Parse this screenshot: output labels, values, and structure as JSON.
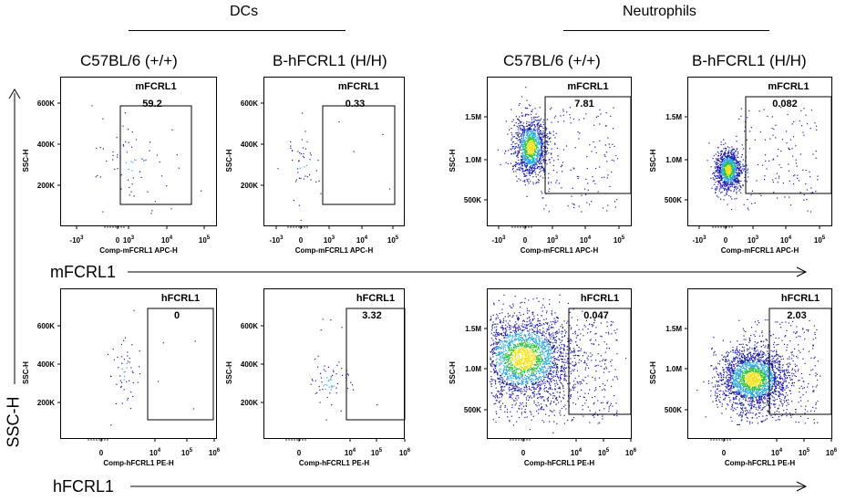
{
  "figure": {
    "group_titles": [
      "DCs",
      "Neutrophils"
    ],
    "column_titles": [
      "C57BL/6 (+/+)",
      "B-hFCRL1 (H/H)",
      "C57BL/6 (+/+)",
      "B-hFCRL1 (H/H)"
    ],
    "y_axis_label": "SSC-H",
    "row_axis_labels": [
      "mFCRL1",
      "hFCRL1"
    ]
  },
  "chart_data": [
    {
      "type": "scatter",
      "cell_type": "DCs",
      "strain": "C57BL/6 (+/+)",
      "stain": "mFCRL1",
      "xlabel": "Comp-mFCRL1 APC-H",
      "ylabel": "SSC-H",
      "x_ticks": [
        "-10^3",
        "0",
        "10^3",
        "10^4",
        "10^5"
      ],
      "y_ticks": [
        "200K",
        "400K",
        "600K"
      ],
      "gate": "mFCRL1",
      "gate_percent": "59.2",
      "density": "sparse"
    },
    {
      "type": "scatter",
      "cell_type": "DCs",
      "strain": "B-hFCRL1 (H/H)",
      "stain": "mFCRL1",
      "xlabel": "Comp-mFCRL1 APC-H",
      "ylabel": "SSC-H",
      "x_ticks": [
        "-10^3",
        "0",
        "10^3",
        "10^4",
        "10^5"
      ],
      "y_ticks": [
        "200K",
        "400K",
        "600K"
      ],
      "gate": "mFCRL1",
      "gate_percent": "0.33",
      "density": "sparse"
    },
    {
      "type": "scatter",
      "cell_type": "Neutrophils",
      "strain": "C57BL/6 (+/+)",
      "stain": "mFCRL1",
      "xlabel": "Comp-mFCRL1 APC-H",
      "ylabel": "SSC-H",
      "x_ticks": [
        "-10^3",
        "0",
        "10^3",
        "10^4",
        "10^5"
      ],
      "y_ticks": [
        "500K",
        "1.0M",
        "1.5M"
      ],
      "gate": "mFCRL1",
      "gate_percent": "7.81",
      "density": "dense"
    },
    {
      "type": "scatter",
      "cell_type": "Neutrophils",
      "strain": "B-hFCRL1 (H/H)",
      "stain": "mFCRL1",
      "xlabel": "Comp-mFCRL1 APC-H",
      "ylabel": "SSC-H",
      "x_ticks": [
        "-10^3",
        "0",
        "10^3",
        "10^4",
        "10^5"
      ],
      "y_ticks": [
        "500K",
        "1.0M",
        "1.5M"
      ],
      "gate": "mFCRL1",
      "gate_percent": "0.082",
      "density": "very dense"
    },
    {
      "type": "scatter",
      "cell_type": "DCs",
      "strain": "C57BL/6 (+/+)",
      "stain": "hFCRL1",
      "xlabel": "Comp-hFCRL1 PE-H",
      "ylabel": "SSC-H",
      "x_ticks": [
        "0",
        "10^4",
        "10^5",
        "10^6"
      ],
      "y_ticks": [
        "200K",
        "400K",
        "600K"
      ],
      "gate": "hFCRL1",
      "gate_percent": "0",
      "density": "sparse"
    },
    {
      "type": "scatter",
      "cell_type": "DCs",
      "strain": "B-hFCRL1 (H/H)",
      "stain": "hFCRL1",
      "xlabel": "Comp-hFCRL1 PE-H",
      "ylabel": "SSC-H",
      "x_ticks": [
        "0",
        "10^4",
        "10^5",
        "10^6"
      ],
      "y_ticks": [
        "200K",
        "400K",
        "600K"
      ],
      "gate": "hFCRL1",
      "gate_percent": "3.32",
      "density": "sparse"
    },
    {
      "type": "scatter",
      "cell_type": "Neutrophils",
      "strain": "C57BL/6 (+/+)",
      "stain": "hFCRL1",
      "xlabel": "Comp-hFCRL1 PE-H",
      "ylabel": "SSC-H",
      "x_ticks": [
        "0",
        "10^4",
        "10^5",
        "10^6"
      ],
      "y_ticks": [
        "500K",
        "1.0M",
        "1.5M"
      ],
      "gate": "hFCRL1",
      "gate_percent": "0.047",
      "density": "dense"
    },
    {
      "type": "scatter",
      "cell_type": "Neutrophils",
      "strain": "B-hFCRL1 (H/H)",
      "stain": "hFCRL1",
      "xlabel": "Comp-hFCRL1 PE-H",
      "ylabel": "SSC-H",
      "x_ticks": [
        "0",
        "10^4",
        "10^5",
        "10^6"
      ],
      "y_ticks": [
        "500K",
        "1.0M",
        "1.5M"
      ],
      "gate": "hFCRL1",
      "gate_percent": "2.03",
      "density": "very dense"
    }
  ],
  "colors": {
    "low": "#1a1aa8",
    "mid": "#2aa8e0",
    "high": "#2fc23a",
    "peak": "#f2e21c",
    "axis": "#000000"
  }
}
